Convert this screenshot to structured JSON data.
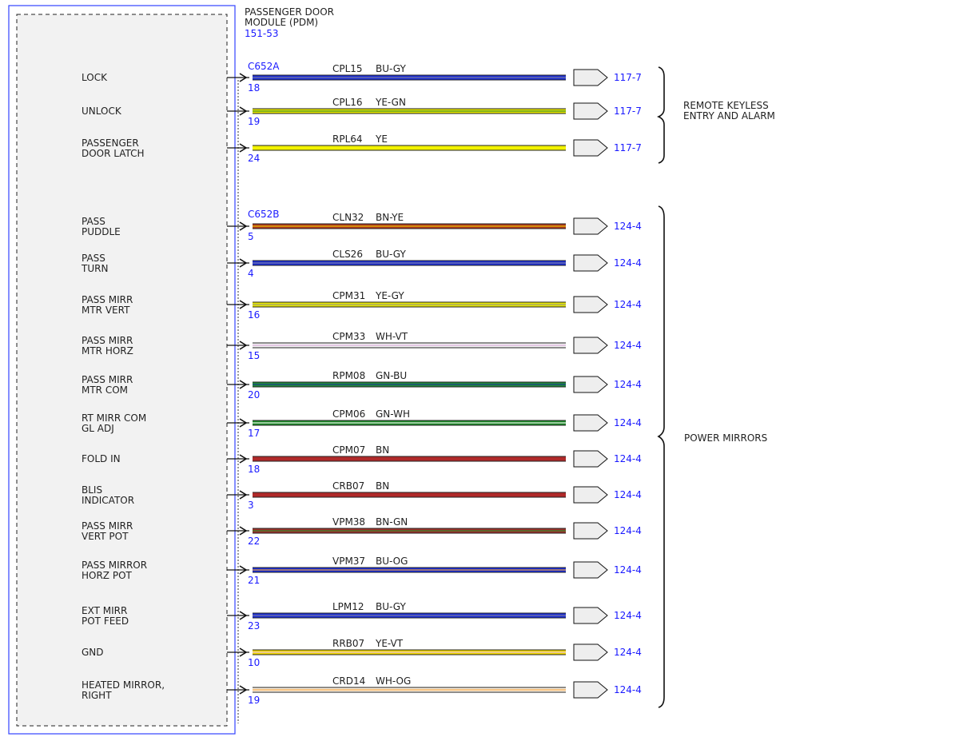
{
  "module": {
    "title_line1": "PASSENGER DOOR",
    "title_line2": "MODULE (PDM)",
    "ref": "151-53",
    "box_outline_color": "#3344ff",
    "inner_fill": "#f2f2f2"
  },
  "connectors": [
    {
      "id": "C652A"
    },
    {
      "id": "C652B"
    }
  ],
  "circuits": [
    {
      "pin_label": [
        "LOCK"
      ],
      "pin": "18",
      "circuit": "CPL15",
      "color_code": "BU-GY",
      "dest": "117-7",
      "connector": 0,
      "wire_colors": [
        "#1c2fd6",
        "#7c7c9c"
      ]
    },
    {
      "pin_label": [
        "UNLOCK"
      ],
      "pin": "19",
      "circuit": "CPL16",
      "color_code": "YE-GN",
      "dest": "117-7",
      "connector": -1,
      "wire_colors": [
        "#e6e600",
        "#3c8c2c"
      ]
    },
    {
      "pin_label": [
        "PASSENGER",
        "DOOR LATCH"
      ],
      "pin": "24",
      "circuit": "RPL64",
      "color_code": "YE",
      "dest": "117-7",
      "connector": -1,
      "wire_colors": [
        "#f2f200",
        "#f2f200"
      ]
    },
    {
      "pin_label": [
        "PASS",
        "PUDDLE"
      ],
      "pin": "5",
      "circuit": "CLN32",
      "color_code": "BN-YE",
      "dest": "124-4",
      "connector": 1,
      "wire_colors": [
        "#b03a1c",
        "#e6c400"
      ]
    },
    {
      "pin_label": [
        "PASS",
        "TURN"
      ],
      "pin": "4",
      "circuit": "CLS26",
      "color_code": "BU-GY",
      "dest": "124-4",
      "connector": -1,
      "wire_colors": [
        "#1c2fd6",
        "#7c7c9c"
      ]
    },
    {
      "pin_label": [
        "PASS MIRR",
        "MTR VERT"
      ],
      "pin": "16",
      "circuit": "CPM31",
      "color_code": "YE-GY",
      "dest": "124-4",
      "connector": -1,
      "wire_colors": [
        "#e6e600",
        "#9a9a7a"
      ]
    },
    {
      "pin_label": [
        "PASS MIRR",
        "MTR HORZ"
      ],
      "pin": "15",
      "circuit": "CPM33",
      "color_code": "WH-VT",
      "dest": "124-4",
      "connector": -1,
      "wire_colors": [
        "#f4f4f4",
        "#d8a8d8"
      ]
    },
    {
      "pin_label": [
        "PASS MIRR",
        "MTR COM"
      ],
      "pin": "20",
      "circuit": "RPM08",
      "color_code": "GN-BU",
      "dest": "124-4",
      "connector": -1,
      "wire_colors": [
        "#1f8a3a",
        "#1c3c8c"
      ]
    },
    {
      "pin_label": [
        "RT MIRR COM",
        "GL ADJ"
      ],
      "pin": "17",
      "circuit": "CPM06",
      "color_code": "GN-WH",
      "dest": "124-4",
      "connector": -1,
      "wire_colors": [
        "#1f8a2a",
        "#e8f2e8"
      ]
    },
    {
      "pin_label": [
        "FOLD IN"
      ],
      "pin": "18",
      "circuit": "CPM07",
      "color_code": "BN",
      "dest": "124-4",
      "connector": -1,
      "wire_colors": [
        "#b02a2a",
        "#b02a2a"
      ]
    },
    {
      "pin_label": [
        "BLIS",
        "INDICATOR"
      ],
      "pin": "3",
      "circuit": "CRB07",
      "color_code": "BN",
      "dest": "124-4",
      "connector": -1,
      "wire_colors": [
        "#b02a2a",
        "#b02a2a"
      ]
    },
    {
      "pin_label": [
        "PASS MIRR",
        "VERT POT"
      ],
      "pin": "22",
      "circuit": "VPM38",
      "color_code": "BN-GN",
      "dest": "124-4",
      "connector": -1,
      "wire_colors": [
        "#a0302a",
        "#2a8a2a"
      ]
    },
    {
      "pin_label": [
        "PASS MIRROR",
        "HORZ POT"
      ],
      "pin": "21",
      "circuit": "VPM37",
      "color_code": "BU-OG",
      "dest": "124-4",
      "connector": -1,
      "wire_colors": [
        "#1c2fd6",
        "#f0a030"
      ]
    },
    {
      "pin_label": [
        "EXT MIRR",
        "POT FEED"
      ],
      "pin": "23",
      "circuit": "LPM12",
      "color_code": "BU-GY",
      "dest": "124-4",
      "connector": -1,
      "wire_colors": [
        "#1c2fd6",
        "#7c7c9c"
      ]
    },
    {
      "pin_label": [
        "GND"
      ],
      "pin": "10",
      "circuit": "RRB07",
      "color_code": "YE-VT",
      "dest": "124-4",
      "connector": -1,
      "wire_colors": [
        "#f2d800",
        "#e8c0e8"
      ]
    },
    {
      "pin_label": [
        "HEATED MIRROR,",
        "RIGHT"
      ],
      "pin": "19",
      "circuit": "CRD14",
      "color_code": "WH-OG",
      "dest": "124-4",
      "connector": -1,
      "wire_colors": [
        "#faf0e0",
        "#f0a040"
      ]
    }
  ],
  "groups": [
    {
      "label_line1": "REMOTE KEYLESS",
      "label_line2": "ENTRY AND ALARM"
    },
    {
      "label_line1": "POWER MIRRORS",
      "label_line2": ""
    }
  ]
}
